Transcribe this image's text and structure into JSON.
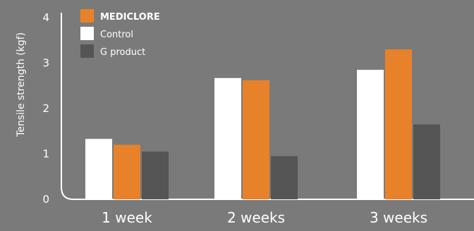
{
  "chart_data": {
    "type": "bar",
    "ylabel": "Tensile strength (kgf)",
    "ylim": [
      0,
      4
    ],
    "yticks": [
      "0",
      "1",
      "2",
      "3",
      "4"
    ],
    "categories": [
      "1 week",
      "2 weeks",
      "3 weeks"
    ],
    "series": [
      {
        "name": "Control",
        "color": "#ffffff",
        "values": [
          1.33,
          2.67,
          2.85
        ]
      },
      {
        "name": "MEDICLORE",
        "color": "#e8822a",
        "values": [
          1.2,
          2.62,
          3.3
        ]
      },
      {
        "name": "G product",
        "color": "#555555",
        "values": [
          1.05,
          0.95,
          1.65
        ]
      }
    ],
    "legend": [
      {
        "name": "MEDICLORE",
        "color": "#e8822a",
        "bold": true
      },
      {
        "name": "Control",
        "color": "#ffffff",
        "bold": false
      },
      {
        "name": "G product",
        "color": "#555555",
        "bold": false
      }
    ],
    "legend_position": "top-left",
    "axis_color": "#ffffff",
    "background": "#7a7a7a",
    "grid": false
  }
}
